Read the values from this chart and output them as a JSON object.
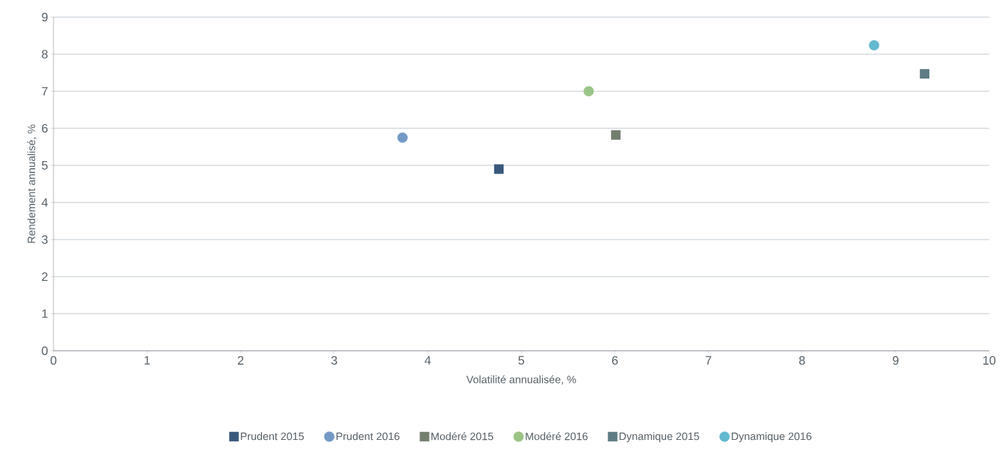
{
  "chart_data": {
    "type": "scatter",
    "xlabel": "Volatilité annualisée, %",
    "ylabel": "Rendement annualisé, %",
    "xlim": [
      0,
      10
    ],
    "ylim": [
      0,
      9
    ],
    "xticks": [
      0,
      1,
      2,
      3,
      4,
      5,
      6,
      7,
      8,
      9,
      10
    ],
    "yticks": [
      0,
      1,
      2,
      3,
      4,
      5,
      6,
      7,
      8,
      9
    ],
    "grid": "y",
    "legend": "bottom",
    "series": [
      {
        "name": "Prudent 2015",
        "color": "#3a587c",
        "marker": "square",
        "x": [
          4.76
        ],
        "values": [
          4.9
        ]
      },
      {
        "name": "Prudent 2016",
        "color": "#7499c6",
        "marker": "circle",
        "x": [
          3.73
        ],
        "values": [
          5.75
        ]
      },
      {
        "name": "Modéré 2015",
        "color": "#727f6e",
        "marker": "square",
        "x": [
          6.01
        ],
        "values": [
          5.82
        ]
      },
      {
        "name": "Modéré 2016",
        "color": "#9cc486",
        "marker": "circle",
        "x": [
          5.72
        ],
        "values": [
          7.0
        ]
      },
      {
        "name": "Dynamique 2015",
        "color": "#5f7b84",
        "marker": "square",
        "x": [
          9.31
        ],
        "values": [
          7.47
        ]
      },
      {
        "name": "Dynamique 2016",
        "color": "#63b9d0",
        "marker": "circle",
        "x": [
          8.77
        ],
        "values": [
          8.24
        ]
      }
    ]
  }
}
